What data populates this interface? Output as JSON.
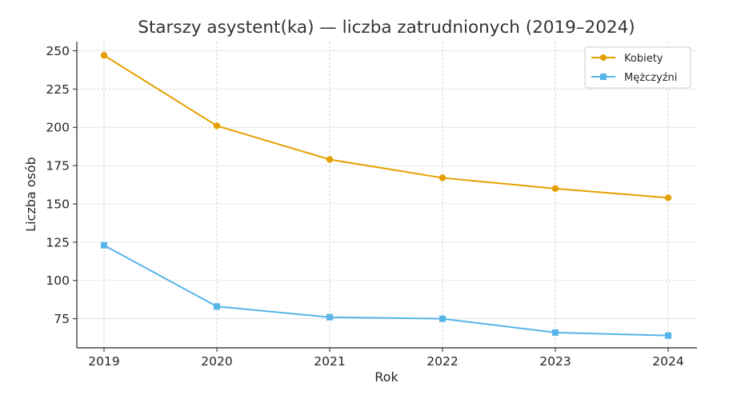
{
  "chart_data": {
    "type": "line",
    "title": "Starszy asystent(ka) — liczba zatrudnionych (2019–2024)",
    "xlabel": "Rok",
    "ylabel": "Liczba osób",
    "x": [
      "2019",
      "2020",
      "2021",
      "2022",
      "2023",
      "2024"
    ],
    "ylim": [
      56,
      256
    ],
    "yticks": [
      75,
      100,
      125,
      150,
      175,
      200,
      225,
      250
    ],
    "grid": true,
    "legend_position": "top-right",
    "series": [
      {
        "name": "Kobiety",
        "values": [
          247,
          201,
          179,
          167,
          160,
          154
        ],
        "color": "#E69F00",
        "marker": "circle"
      },
      {
        "name": "Mężczyźni",
        "values": [
          123,
          83,
          76,
          75,
          66,
          64
        ],
        "color": "#56B4E9",
        "marker": "square"
      }
    ]
  }
}
